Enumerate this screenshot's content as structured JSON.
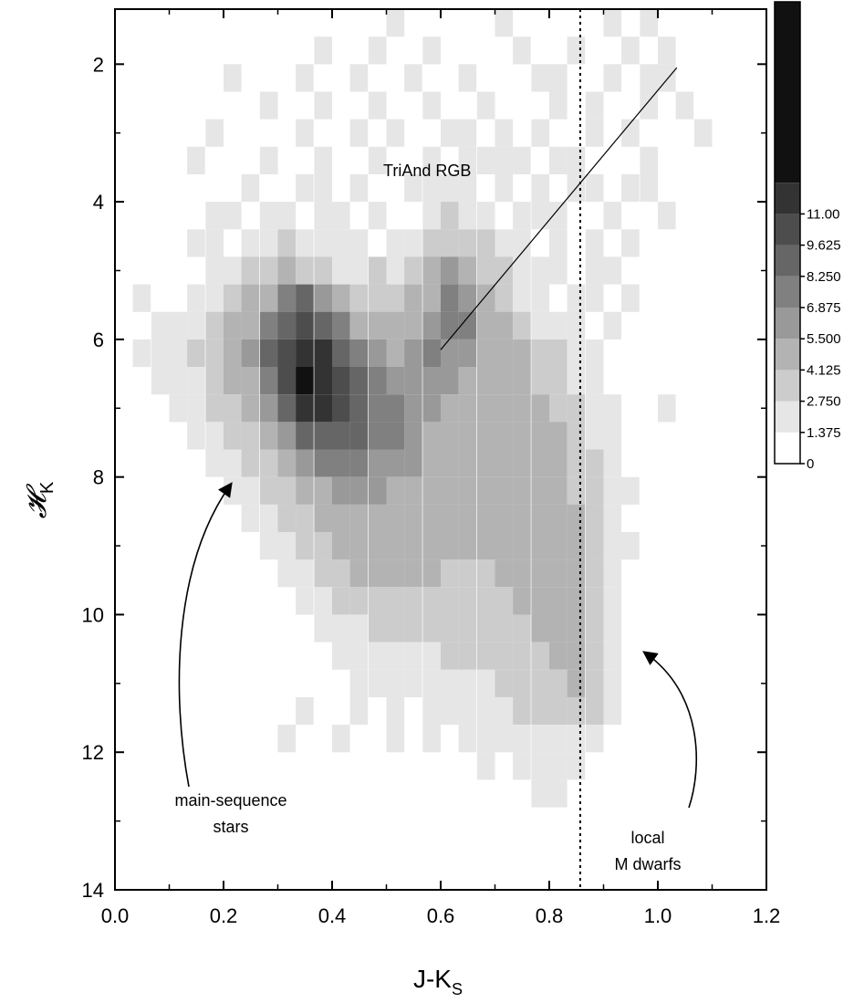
{
  "chart_data": {
    "type": "heatmap",
    "xlabel_main": "J-K",
    "xlabel_sub": "S",
    "ylabel_main": "𝓗",
    "ylabel_sub": "K",
    "xlim": [
      0.0,
      1.2
    ],
    "ylim": [
      14,
      1.2
    ],
    "y_inverted": true,
    "x_ticks": [
      "0.0",
      "0.2",
      "0.4",
      "0.6",
      "0.8",
      "1.0",
      "1.2"
    ],
    "y_ticks": [
      "2",
      "4",
      "6",
      "8",
      "10",
      "12",
      "14"
    ],
    "colorbar": {
      "levels": [
        0,
        1.375,
        2.75,
        4.125,
        5.5,
        6.875,
        8.25,
        9.625,
        11.0
      ],
      "labels": [
        "0",
        "1.375",
        "2.750",
        "4.125",
        "5.500",
        "6.875",
        "8.250",
        "9.625",
        "11.00"
      ],
      "colors": [
        "#ffffff",
        "#e6e6e6",
        "#cccccc",
        "#b3b3b3",
        "#999999",
        "#808080",
        "#666666",
        "#4d4d4d",
        "#333333",
        "#111111"
      ]
    },
    "bins": {
      "x_bins": [
        0.0,
        0.033,
        0.067,
        0.1,
        0.133,
        0.167,
        0.2,
        0.233,
        0.267,
        0.3,
        0.333,
        0.367,
        0.4,
        0.433,
        0.467,
        0.5,
        0.533,
        0.567,
        0.6,
        0.633,
        0.667,
        0.7,
        0.733,
        0.767,
        0.8,
        0.833,
        0.867,
        0.9,
        0.933,
        0.967,
        1.0,
        1.033,
        1.067,
        1.1
      ],
      "y_bins": [
        1.2,
        1.6,
        2.0,
        2.4,
        2.8,
        3.2,
        3.6,
        4.0,
        4.4,
        4.8,
        5.2,
        5.6,
        6.0,
        6.4,
        6.8,
        7.2,
        7.6,
        8.0,
        8.4,
        8.8,
        9.2,
        9.6,
        10.0,
        10.4,
        10.8,
        11.2,
        11.6,
        12.0,
        12.4,
        12.8,
        13.2
      ],
      "counts": [
        [
          0,
          0,
          0,
          0,
          0,
          0,
          0,
          0,
          0,
          0,
          0,
          0,
          0,
          0,
          0,
          1,
          0,
          0,
          0,
          0,
          0,
          1,
          0,
          0,
          0,
          0,
          0,
          1,
          0,
          1,
          0,
          0,
          0,
          0
        ],
        [
          0,
          0,
          0,
          0,
          0,
          0,
          0,
          0,
          0,
          0,
          0,
          1,
          0,
          0,
          1,
          0,
          0,
          1,
          0,
          0,
          0,
          0,
          1,
          0,
          0,
          1,
          0,
          0,
          1,
          0,
          1,
          0,
          0,
          0
        ],
        [
          0,
          0,
          0,
          0,
          0,
          0,
          1,
          0,
          0,
          0,
          1,
          0,
          0,
          1,
          0,
          0,
          1,
          0,
          0,
          1,
          0,
          0,
          0,
          1,
          1,
          0,
          0,
          1,
          0,
          1,
          1,
          0,
          0,
          0
        ],
        [
          0,
          0,
          0,
          0,
          0,
          0,
          0,
          0,
          1,
          0,
          0,
          1,
          0,
          0,
          1,
          0,
          0,
          1,
          0,
          0,
          1,
          0,
          0,
          0,
          1,
          0,
          1,
          0,
          0,
          1,
          0,
          1,
          0,
          0
        ],
        [
          0,
          0,
          0,
          0,
          0,
          1,
          0,
          0,
          0,
          0,
          1,
          0,
          0,
          1,
          0,
          1,
          0,
          0,
          1,
          1,
          0,
          1,
          0,
          1,
          0,
          0,
          1,
          0,
          1,
          0,
          0,
          0,
          1,
          0
        ],
        [
          0,
          0,
          0,
          0,
          1,
          0,
          0,
          0,
          1,
          0,
          0,
          1,
          0,
          0,
          1,
          0,
          0,
          1,
          0,
          1,
          1,
          1,
          1,
          0,
          1,
          1,
          0,
          0,
          0,
          1,
          0,
          0,
          0,
          0
        ],
        [
          0,
          0,
          0,
          0,
          0,
          0,
          0,
          1,
          0,
          0,
          1,
          1,
          0,
          1,
          0,
          0,
          1,
          1,
          1,
          1,
          0,
          1,
          0,
          1,
          0,
          1,
          1,
          0,
          1,
          1,
          0,
          0,
          0,
          0
        ],
        [
          0,
          0,
          0,
          0,
          0,
          1,
          1,
          0,
          1,
          1,
          0,
          1,
          1,
          0,
          1,
          0,
          0,
          1,
          2,
          1,
          1,
          0,
          1,
          1,
          1,
          0,
          0,
          1,
          0,
          0,
          1,
          0,
          0,
          0
        ],
        [
          0,
          0,
          0,
          0,
          1,
          1,
          0,
          1,
          1,
          2,
          1,
          1,
          1,
          1,
          0,
          1,
          1,
          2,
          2,
          2,
          2,
          1,
          1,
          0,
          1,
          0,
          1,
          0,
          1,
          0,
          0,
          0,
          0,
          0
        ],
        [
          0,
          0,
          0,
          0,
          0,
          1,
          1,
          2,
          2,
          3,
          2,
          2,
          1,
          1,
          2,
          1,
          2,
          3,
          5,
          3,
          2,
          2,
          1,
          1,
          1,
          0,
          1,
          1,
          0,
          0,
          0,
          0,
          0,
          0
        ],
        [
          0,
          1,
          0,
          0,
          1,
          1,
          2,
          3,
          4,
          6,
          7,
          5,
          3,
          2,
          2,
          2,
          3,
          4,
          6,
          5,
          3,
          2,
          1,
          1,
          0,
          1,
          1,
          0,
          1,
          0,
          0,
          0,
          0,
          0
        ],
        [
          0,
          0,
          1,
          1,
          1,
          2,
          3,
          4,
          6,
          8,
          9,
          8,
          6,
          4,
          3,
          3,
          4,
          5,
          6,
          6,
          4,
          3,
          2,
          1,
          1,
          1,
          0,
          1,
          0,
          0,
          0,
          0,
          0,
          0
        ],
        [
          0,
          1,
          1,
          1,
          2,
          2,
          3,
          5,
          7,
          9,
          11,
          10,
          8,
          6,
          5,
          4,
          5,
          6,
          5,
          5,
          4,
          3,
          3,
          2,
          2,
          1,
          1,
          0,
          0,
          0,
          0,
          0,
          0,
          0
        ],
        [
          0,
          0,
          1,
          1,
          1,
          2,
          3,
          4,
          6,
          9,
          12,
          11,
          9,
          7,
          6,
          5,
          5,
          5,
          5,
          4,
          4,
          3,
          3,
          2,
          2,
          1,
          1,
          0,
          0,
          0,
          0,
          0,
          0,
          0
        ],
        [
          0,
          0,
          0,
          1,
          1,
          2,
          2,
          3,
          5,
          8,
          10,
          10,
          9,
          7,
          6,
          6,
          5,
          5,
          4,
          4,
          4,
          4,
          3,
          3,
          2,
          2,
          1,
          1,
          0,
          0,
          1,
          0,
          0,
          0
        ],
        [
          0,
          0,
          0,
          0,
          1,
          1,
          2,
          2,
          3,
          5,
          7,
          8,
          8,
          7,
          6,
          6,
          5,
          4,
          4,
          4,
          4,
          4,
          3,
          3,
          3,
          2,
          1,
          1,
          0,
          0,
          0,
          0,
          0,
          0
        ],
        [
          0,
          0,
          0,
          0,
          0,
          1,
          1,
          2,
          2,
          3,
          5,
          6,
          6,
          6,
          5,
          5,
          5,
          4,
          4,
          4,
          3,
          3,
          3,
          3,
          3,
          2,
          2,
          1,
          0,
          0,
          0,
          0,
          0,
          0
        ],
        [
          0,
          0,
          0,
          0,
          0,
          0,
          1,
          1,
          2,
          2,
          3,
          4,
          5,
          5,
          5,
          4,
          4,
          4,
          4,
          3,
          3,
          3,
          3,
          3,
          3,
          2,
          2,
          1,
          1,
          0,
          0,
          0,
          0,
          0
        ],
        [
          0,
          0,
          0,
          0,
          0,
          0,
          0,
          1,
          1,
          2,
          2,
          3,
          3,
          4,
          4,
          4,
          4,
          3,
          3,
          3,
          3,
          3,
          3,
          3,
          3,
          3,
          2,
          1,
          0,
          0,
          0,
          0,
          0,
          0
        ],
        [
          0,
          0,
          0,
          0,
          0,
          0,
          0,
          0,
          1,
          1,
          2,
          2,
          3,
          3,
          3,
          3,
          3,
          3,
          3,
          3,
          3,
          3,
          3,
          3,
          3,
          3,
          2,
          1,
          1,
          0,
          0,
          0,
          0,
          0
        ],
        [
          0,
          0,
          0,
          0,
          0,
          0,
          0,
          0,
          0,
          1,
          1,
          2,
          2,
          3,
          3,
          3,
          3,
          3,
          2,
          2,
          2,
          3,
          3,
          3,
          3,
          3,
          2,
          1,
          0,
          0,
          0,
          0,
          0,
          0
        ],
        [
          0,
          0,
          0,
          0,
          0,
          0,
          0,
          0,
          0,
          0,
          1,
          1,
          2,
          2,
          2,
          2,
          2,
          2,
          2,
          2,
          2,
          2,
          3,
          3,
          3,
          3,
          2,
          1,
          0,
          0,
          0,
          0,
          0,
          0
        ],
        [
          0,
          0,
          0,
          0,
          0,
          0,
          0,
          0,
          0,
          0,
          0,
          1,
          1,
          1,
          2,
          2,
          2,
          2,
          2,
          2,
          2,
          2,
          2,
          3,
          3,
          3,
          2,
          1,
          0,
          0,
          0,
          0,
          0,
          0
        ],
        [
          0,
          0,
          0,
          0,
          0,
          0,
          0,
          0,
          0,
          0,
          0,
          0,
          1,
          1,
          1,
          1,
          1,
          1,
          2,
          2,
          2,
          2,
          2,
          2,
          3,
          3,
          2,
          1,
          0,
          0,
          0,
          0,
          0,
          0
        ],
        [
          0,
          0,
          0,
          0,
          0,
          0,
          0,
          0,
          0,
          0,
          0,
          0,
          0,
          1,
          1,
          1,
          1,
          1,
          1,
          1,
          1,
          2,
          2,
          2,
          2,
          3,
          2,
          1,
          0,
          0,
          0,
          0,
          0,
          0
        ],
        [
          0,
          0,
          0,
          0,
          0,
          0,
          0,
          0,
          0,
          0,
          1,
          0,
          0,
          1,
          0,
          1,
          0,
          1,
          1,
          1,
          1,
          1,
          2,
          2,
          2,
          2,
          2,
          1,
          0,
          0,
          0,
          0,
          0,
          0
        ],
        [
          0,
          0,
          0,
          0,
          0,
          0,
          0,
          0,
          0,
          1,
          0,
          0,
          1,
          0,
          0,
          1,
          0,
          1,
          0,
          1,
          1,
          1,
          1,
          1,
          1,
          1,
          1,
          0,
          0,
          0,
          0,
          0,
          0,
          0
        ],
        [
          0,
          0,
          0,
          0,
          0,
          0,
          0,
          0,
          0,
          0,
          0,
          0,
          0,
          0,
          0,
          0,
          0,
          0,
          0,
          0,
          1,
          0,
          1,
          1,
          1,
          1,
          0,
          0,
          0,
          0,
          0,
          0,
          0,
          0
        ],
        [
          0,
          0,
          0,
          0,
          0,
          0,
          0,
          0,
          0,
          0,
          0,
          0,
          0,
          0,
          0,
          0,
          0,
          0,
          0,
          0,
          0,
          0,
          0,
          1,
          1,
          0,
          0,
          0,
          0,
          0,
          0,
          0,
          0,
          0
        ],
        [
          0,
          0,
          0,
          0,
          0,
          0,
          0,
          0,
          0,
          0,
          0,
          0,
          0,
          0,
          0,
          0,
          0,
          0,
          0,
          0,
          0,
          0,
          0,
          0,
          0,
          0,
          0,
          0,
          0,
          0,
          0,
          0,
          0,
          0
        ],
        [
          0,
          0,
          0,
          0,
          0,
          0,
          0,
          0,
          0,
          0,
          0,
          0,
          0,
          0,
          0,
          0,
          0,
          0,
          0,
          0,
          0,
          0,
          0,
          0,
          0,
          0,
          0,
          0,
          0,
          0,
          0,
          0,
          0,
          0
        ]
      ]
    },
    "vline_x": 0.857,
    "rgb_line": [
      [
        0.6,
        6.15
      ],
      [
        1.035,
        2.05
      ]
    ],
    "annotations": {
      "rgb": "TriAnd RGB",
      "ms_line1": "main-sequence",
      "ms_line2": "stars",
      "md_line1": "local",
      "md_line2": "M dwarfs"
    }
  }
}
